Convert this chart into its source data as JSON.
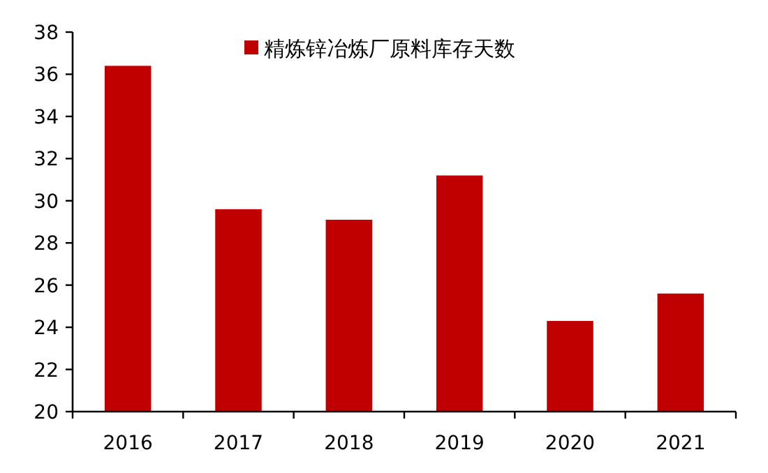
{
  "chart_data": {
    "type": "bar",
    "categories": [
      "2016",
      "2017",
      "2018",
      "2019",
      "2020",
      "2021"
    ],
    "series": [
      {
        "name": "精炼锌冶炼厂原料库存天数",
        "color": "#c00000",
        "values": [
          36.4,
          29.6,
          29.1,
          31.2,
          24.3,
          25.6
        ]
      }
    ],
    "ylim": [
      20,
      38
    ],
    "yticks": [
      20,
      22,
      24,
      26,
      28,
      30,
      32,
      34,
      36,
      38
    ],
    "grid": false,
    "legend": "top"
  }
}
